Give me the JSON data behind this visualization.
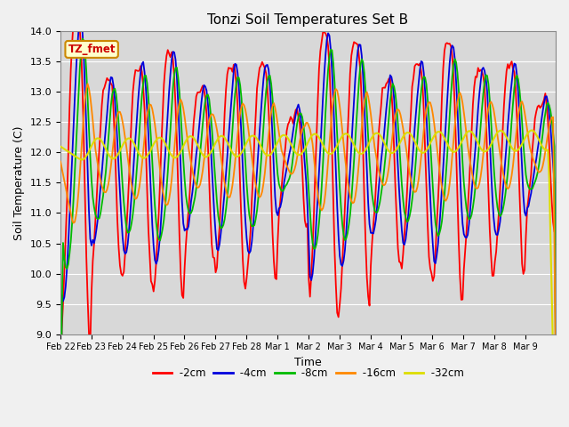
{
  "title": "Tonzi Soil Temperatures Set B",
  "xlabel": "Time",
  "ylabel": "Soil Temperature (C)",
  "ylim": [
    9.0,
    14.0
  ],
  "yticks": [
    9.0,
    9.5,
    10.0,
    10.5,
    11.0,
    11.5,
    12.0,
    12.5,
    13.0,
    13.5,
    14.0
  ],
  "colors": {
    "-2cm": "#ff0000",
    "-4cm": "#0000dd",
    "-8cm": "#00bb00",
    "-16cm": "#ff8800",
    "-32cm": "#dddd00"
  },
  "annotation": "TZ_fmet",
  "annotation_bg": "#ffffcc",
  "annotation_border": "#cc8800",
  "fig_bg": "#f0f0f0",
  "plot_bg": "#d8d8d8",
  "grid_color": "#ffffff",
  "date_labels": [
    "Feb 22",
    "Feb 23",
    "Feb 24",
    "Feb 25",
    "Feb 26",
    "Feb 27",
    "Feb 28",
    "Mar 1",
    "Mar 2",
    "Mar 3",
    "Mar 4",
    "Mar 5",
    "Mar 6",
    "Mar 7",
    "Mar 8",
    "Mar 9"
  ],
  "n_days": 16
}
